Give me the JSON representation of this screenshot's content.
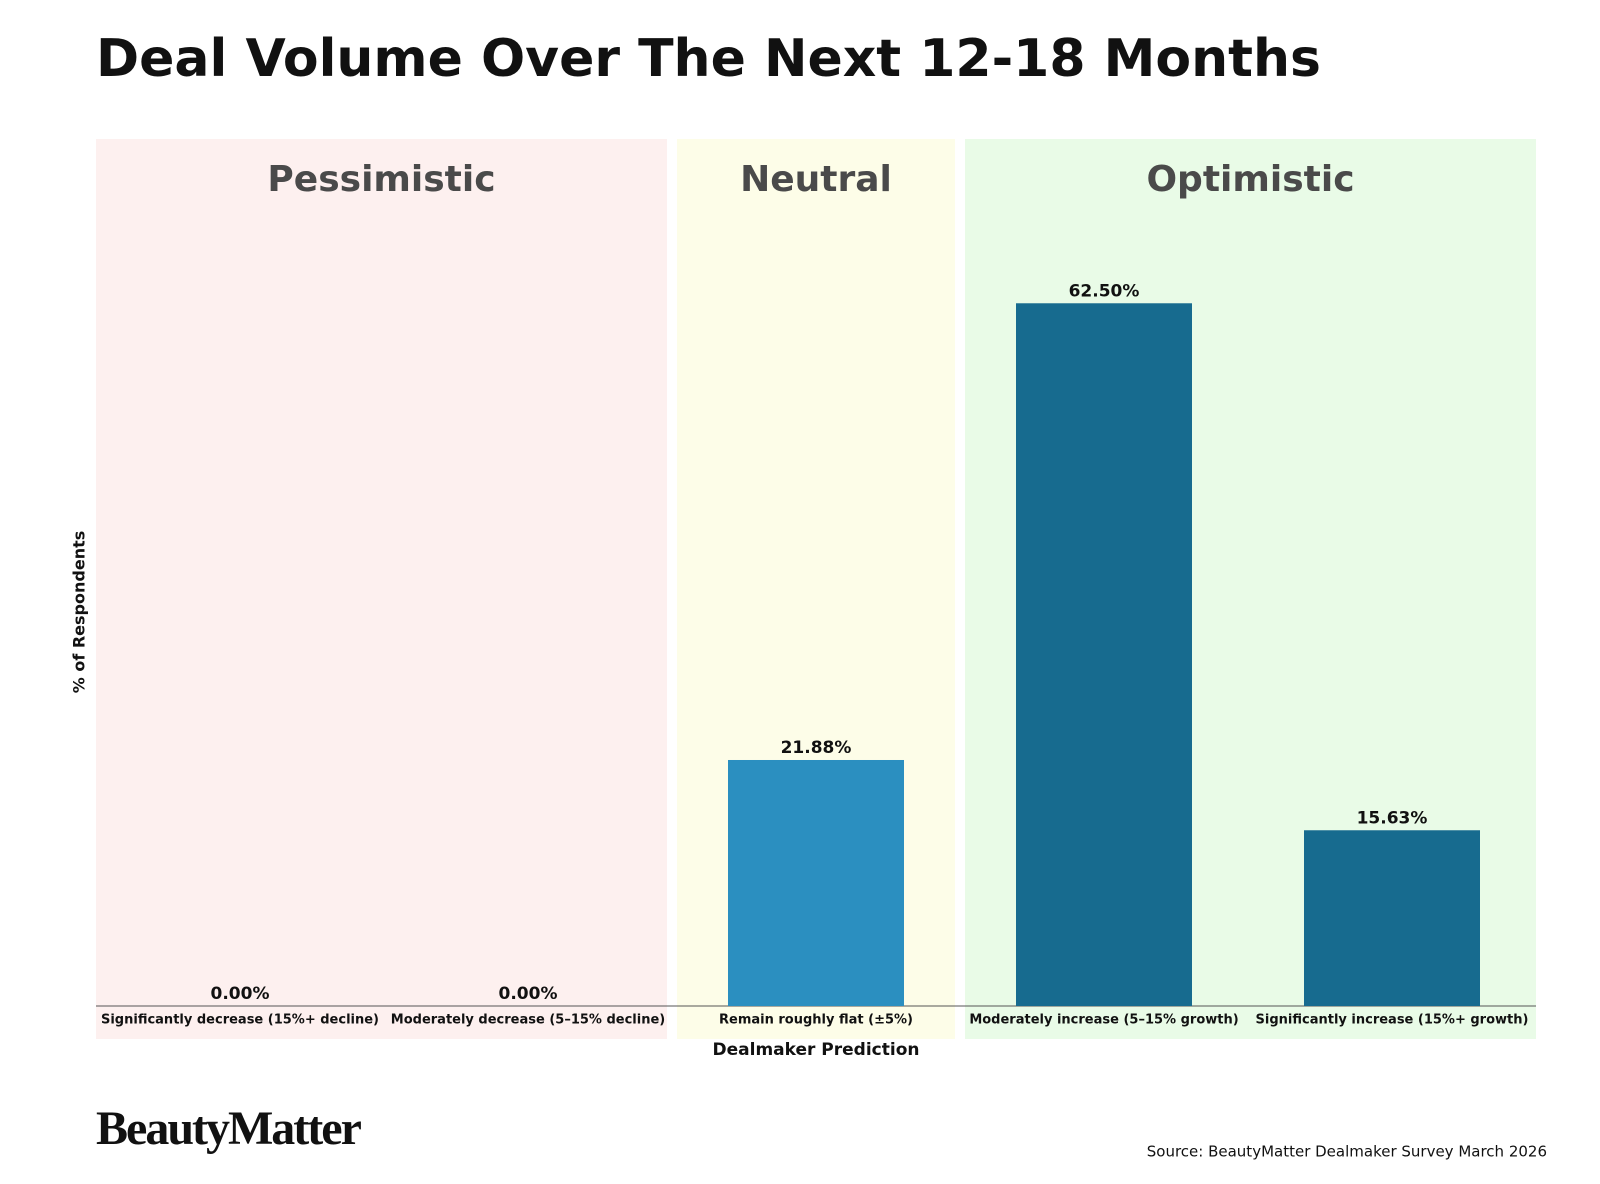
{
  "chart_data": {
    "type": "bar",
    "title": "Deal Volume Over The Next 12-18 Months",
    "x_label": "Dealmaker Prediction",
    "y_label": "% of Respondents",
    "categories": [
      "Significantly decrease (15%+ decline)",
      "Moderately decrease (5–15% decline)",
      "Remain roughly flat (±5%)",
      "Moderately increase (5–15% growth)",
      "Significantly increase (15%+ growth)"
    ],
    "values": [
      0,
      0,
      21.88,
      62.5,
      15.63
    ],
    "value_labels": [
      "0.00%",
      "0.00%",
      "21.88%",
      "62.50%",
      "15.63%"
    ],
    "colors": [
      "#176b8f",
      "#176b8f",
      "#2b8fc0",
      "#176b8f",
      "#176b8f"
    ],
    "groups": [
      {
        "name": "Pessimistic",
        "color": "#fdf0ef",
        "size": 2
      },
      {
        "name": "Neutral",
        "color": "#fdfde8",
        "size": 1
      },
      {
        "name": "Optimistic",
        "color": "#e9fbe7",
        "size": 2
      }
    ],
    "ylim": [
      0,
      68.75
    ],
    "brand": "BeautyMatter",
    "source": "Source: BeautyMatter Dealmaker Survey March 2026"
  }
}
